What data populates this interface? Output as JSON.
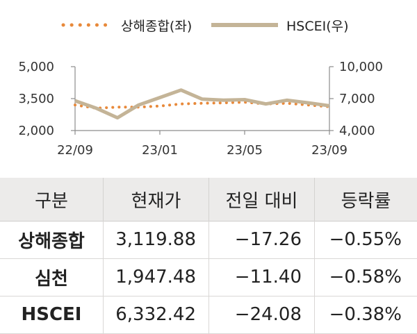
{
  "chart_data": {
    "type": "line",
    "x_ticks": [
      "22/09",
      "23/01",
      "23/05",
      "23/09"
    ],
    "y_left_ticks": [
      "5,000",
      "3,500",
      "2,000"
    ],
    "y_right_ticks": [
      "10,000",
      "7,000",
      "4,000"
    ],
    "ylim_left": [
      2000,
      5000
    ],
    "ylim_right": [
      4000,
      10000
    ],
    "legend_position": "top-center",
    "grid": false,
    "series": [
      {
        "name": "상해종합(좌)",
        "axis": "left",
        "style": "dotted",
        "color": "#e8893a",
        "x": [
          "22/09",
          "22/10",
          "22/11",
          "22/12",
          "23/01",
          "23/02",
          "23/03",
          "23/04",
          "23/05",
          "23/06",
          "23/07",
          "23/08",
          "23/09"
        ],
        "values": [
          3200,
          3050,
          3100,
          3100,
          3150,
          3250,
          3280,
          3300,
          3330,
          3250,
          3280,
          3200,
          3120
        ]
      },
      {
        "name": "HSCEI(우)",
        "axis": "right",
        "style": "solid",
        "color": "#c4b497",
        "x": [
          "22/09",
          "22/10",
          "22/11",
          "22/12",
          "23/01",
          "23/02",
          "23/03",
          "23/04",
          "23/05",
          "23/06",
          "23/07",
          "23/08",
          "23/09"
        ],
        "values": [
          6800,
          6100,
          5200,
          6400,
          7100,
          7800,
          6950,
          6850,
          6900,
          6500,
          6850,
          6600,
          6330
        ]
      }
    ]
  },
  "table": {
    "headers": [
      "구분",
      "현재가",
      "전일 대비",
      "등락률"
    ],
    "rows": [
      [
        "상해종합",
        "3,119.88",
        "−17.26",
        "−0.55%"
      ],
      [
        "심천",
        "1,947.48",
        "−11.40",
        "−0.58%"
      ],
      [
        "HSCEI",
        "6,332.42",
        "−24.08",
        "−0.38%"
      ]
    ]
  }
}
